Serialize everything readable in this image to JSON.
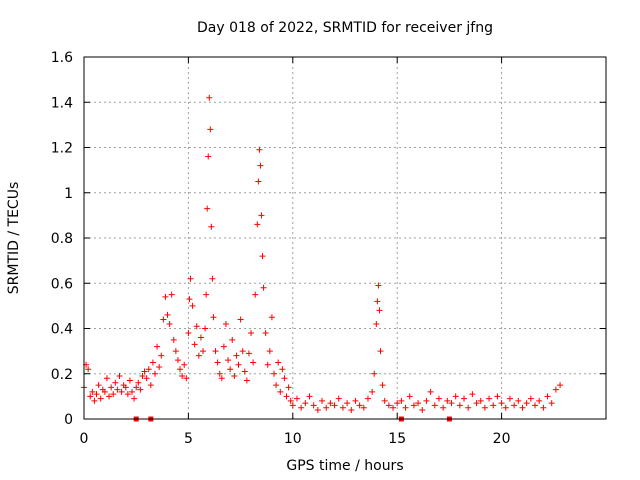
{
  "chart_data": {
    "type": "scatter",
    "title": "Day 018 of 2022, SRMTID for receiver jfng",
    "xlabel": "GPS time / hours",
    "ylabel": "SRMTID / TECUs",
    "xlim": [
      0,
      25
    ],
    "ylim": [
      0,
      1.6
    ],
    "x_ticks": [
      "0",
      "5",
      "10",
      "15",
      "20"
    ],
    "y_ticks": [
      "0",
      "0.2",
      "0.4",
      "0.6",
      "0.8",
      "1",
      "1.2",
      "1.4",
      "1.6"
    ],
    "grid": true,
    "marker": "plus",
    "series_color": "#ff0000",
    "series": [
      {
        "name": "SRMTID",
        "points": [
          [
            0.0,
            0.14
          ],
          [
            0.1,
            0.24
          ],
          [
            0.2,
            0.22
          ],
          [
            0.3,
            0.1
          ],
          [
            0.4,
            0.12
          ],
          [
            0.5,
            0.08
          ],
          [
            0.6,
            0.11
          ],
          [
            0.7,
            0.15
          ],
          [
            0.8,
            0.09
          ],
          [
            0.9,
            0.13
          ],
          [
            1.0,
            0.12
          ],
          [
            1.1,
            0.18
          ],
          [
            1.2,
            0.1
          ],
          [
            1.3,
            0.14
          ],
          [
            1.4,
            0.11
          ],
          [
            1.5,
            0.16
          ],
          [
            1.6,
            0.13
          ],
          [
            1.7,
            0.19
          ],
          [
            1.8,
            0.12
          ],
          [
            1.9,
            0.15
          ],
          [
            2.0,
            0.14
          ],
          [
            2.1,
            0.11
          ],
          [
            2.2,
            0.17
          ],
          [
            2.3,
            0.12
          ],
          [
            2.4,
            0.09
          ],
          [
            2.5,
            0.14
          ],
          [
            2.6,
            0.16
          ],
          [
            2.7,
            0.13
          ],
          [
            2.8,
            0.19
          ],
          [
            2.9,
            0.21
          ],
          [
            3.0,
            0.18
          ],
          [
            3.1,
            0.22
          ],
          [
            3.2,
            0.15
          ],
          [
            3.3,
            0.25
          ],
          [
            3.4,
            0.2
          ],
          [
            3.5,
            0.32
          ],
          [
            3.6,
            0.23
          ],
          [
            3.7,
            0.28
          ],
          [
            3.8,
            0.44
          ],
          [
            3.9,
            0.54
          ],
          [
            4.0,
            0.46
          ],
          [
            4.1,
            0.42
          ],
          [
            4.2,
            0.55
          ],
          [
            4.3,
            0.35
          ],
          [
            4.4,
            0.3
          ],
          [
            4.5,
            0.26
          ],
          [
            4.6,
            0.22
          ],
          [
            4.7,
            0.19
          ],
          [
            4.8,
            0.24
          ],
          [
            4.9,
            0.18
          ],
          [
            5.0,
            0.38
          ],
          [
            5.05,
            0.53
          ],
          [
            5.1,
            0.62
          ],
          [
            5.2,
            0.5
          ],
          [
            5.3,
            0.33
          ],
          [
            5.4,
            0.41
          ],
          [
            5.5,
            0.28
          ],
          [
            5.6,
            0.36
          ],
          [
            5.7,
            0.3
          ],
          [
            5.8,
            0.4
          ],
          [
            5.85,
            0.55
          ],
          [
            5.9,
            0.93
          ],
          [
            5.95,
            1.16
          ],
          [
            6.0,
            1.42
          ],
          [
            6.05,
            1.28
          ],
          [
            6.1,
            0.85
          ],
          [
            6.15,
            0.62
          ],
          [
            6.2,
            0.45
          ],
          [
            6.3,
            0.3
          ],
          [
            6.4,
            0.25
          ],
          [
            6.5,
            0.2
          ],
          [
            6.6,
            0.18
          ],
          [
            6.7,
            0.32
          ],
          [
            6.8,
            0.42
          ],
          [
            6.9,
            0.26
          ],
          [
            7.0,
            0.22
          ],
          [
            7.1,
            0.35
          ],
          [
            7.2,
            0.19
          ],
          [
            7.3,
            0.28
          ],
          [
            7.4,
            0.24
          ],
          [
            7.5,
            0.44
          ],
          [
            7.6,
            0.3
          ],
          [
            7.7,
            0.21
          ],
          [
            7.8,
            0.17
          ],
          [
            7.9,
            0.29
          ],
          [
            8.0,
            0.38
          ],
          [
            8.1,
            0.25
          ],
          [
            8.2,
            0.55
          ],
          [
            8.3,
            0.86
          ],
          [
            8.35,
            1.05
          ],
          [
            8.4,
            1.19
          ],
          [
            8.45,
            1.12
          ],
          [
            8.5,
            0.9
          ],
          [
            8.55,
            0.72
          ],
          [
            8.6,
            0.58
          ],
          [
            8.7,
            0.38
          ],
          [
            8.8,
            0.24
          ],
          [
            8.9,
            0.3
          ],
          [
            9.0,
            0.45
          ],
          [
            9.1,
            0.2
          ],
          [
            9.2,
            0.15
          ],
          [
            9.3,
            0.25
          ],
          [
            9.4,
            0.12
          ],
          [
            9.5,
            0.22
          ],
          [
            9.6,
            0.18
          ],
          [
            9.7,
            0.1
          ],
          [
            9.8,
            0.14
          ],
          [
            9.9,
            0.08
          ],
          [
            10.0,
            0.06
          ],
          [
            10.2,
            0.09
          ],
          [
            10.4,
            0.05
          ],
          [
            10.6,
            0.07
          ],
          [
            10.8,
            0.1
          ],
          [
            11.0,
            0.06
          ],
          [
            11.2,
            0.04
          ],
          [
            11.4,
            0.08
          ],
          [
            11.6,
            0.05
          ],
          [
            11.8,
            0.07
          ],
          [
            12.0,
            0.06
          ],
          [
            12.2,
            0.09
          ],
          [
            12.4,
            0.05
          ],
          [
            12.6,
            0.07
          ],
          [
            12.8,
            0.04
          ],
          [
            13.0,
            0.08
          ],
          [
            13.2,
            0.06
          ],
          [
            13.4,
            0.05
          ],
          [
            13.6,
            0.09
          ],
          [
            13.8,
            0.12
          ],
          [
            13.9,
            0.2
          ],
          [
            14.0,
            0.42
          ],
          [
            14.05,
            0.52
          ],
          [
            14.1,
            0.59
          ],
          [
            14.15,
            0.48
          ],
          [
            14.2,
            0.3
          ],
          [
            14.3,
            0.15
          ],
          [
            14.4,
            0.08
          ],
          [
            14.6,
            0.06
          ],
          [
            14.8,
            0.05
          ],
          [
            15.0,
            0.07
          ],
          [
            15.2,
            0.08
          ],
          [
            15.4,
            0.05
          ],
          [
            15.6,
            0.1
          ],
          [
            15.8,
            0.06
          ],
          [
            16.0,
            0.07
          ],
          [
            16.2,
            0.04
          ],
          [
            16.4,
            0.08
          ],
          [
            16.6,
            0.12
          ],
          [
            16.8,
            0.06
          ],
          [
            17.0,
            0.09
          ],
          [
            17.2,
            0.05
          ],
          [
            17.4,
            0.08
          ],
          [
            17.6,
            0.07
          ],
          [
            17.8,
            0.1
          ],
          [
            18.0,
            0.06
          ],
          [
            18.2,
            0.09
          ],
          [
            18.4,
            0.05
          ],
          [
            18.6,
            0.11
          ],
          [
            18.8,
            0.07
          ],
          [
            19.0,
            0.08
          ],
          [
            19.2,
            0.05
          ],
          [
            19.4,
            0.09
          ],
          [
            19.6,
            0.06
          ],
          [
            19.8,
            0.1
          ],
          [
            20.0,
            0.07
          ],
          [
            20.2,
            0.05
          ],
          [
            20.4,
            0.09
          ],
          [
            20.6,
            0.06
          ],
          [
            20.8,
            0.08
          ],
          [
            21.0,
            0.05
          ],
          [
            21.2,
            0.07
          ],
          [
            21.4,
            0.09
          ],
          [
            21.6,
            0.06
          ],
          [
            21.8,
            0.08
          ],
          [
            22.0,
            0.05
          ],
          [
            22.2,
            0.1
          ],
          [
            22.4,
            0.07
          ],
          [
            22.6,
            0.13
          ],
          [
            22.8,
            0.15
          ]
        ]
      }
    ],
    "zero_markers_x": [
      2.5,
      3.2,
      15.2,
      17.5
    ]
  }
}
